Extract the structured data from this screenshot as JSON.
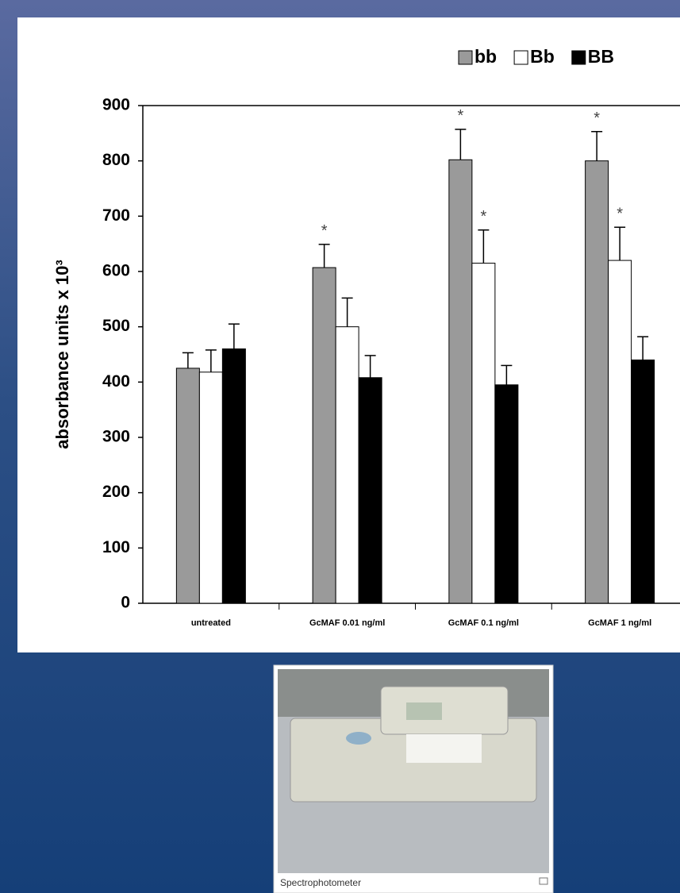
{
  "chart_data": {
    "type": "bar",
    "y_label": "absorbance units x 10³",
    "categories": [
      "untreated",
      "GcMAF 0.01 ng/ml",
      "GcMAF 0.1 ng/ml",
      "GcMAF 1 ng/ml"
    ],
    "series": [
      {
        "name": "bb",
        "color": "#9a9a9a",
        "values": [
          425,
          607,
          802,
          800
        ],
        "errors": [
          28,
          42,
          55,
          53
        ],
        "significant": [
          false,
          true,
          true,
          true
        ]
      },
      {
        "name": "Bb",
        "color": "#ffffff",
        "values": [
          418,
          500,
          615,
          620
        ],
        "errors": [
          40,
          52,
          60,
          60
        ],
        "significant": [
          false,
          false,
          true,
          true
        ]
      },
      {
        "name": "BB",
        "color": "#000000",
        "values": [
          460,
          408,
          395,
          440
        ],
        "errors": [
          45,
          40,
          35,
          42
        ],
        "significant": [
          false,
          false,
          false,
          false
        ]
      }
    ],
    "significance_marker": "*",
    "ylim": [
      0,
      900
    ],
    "yticks": [
      0,
      100,
      200,
      300,
      400,
      500,
      600,
      700,
      800,
      900
    ],
    "legend": "top-right"
  },
  "image": {
    "caption": "Spectrophotometer"
  }
}
